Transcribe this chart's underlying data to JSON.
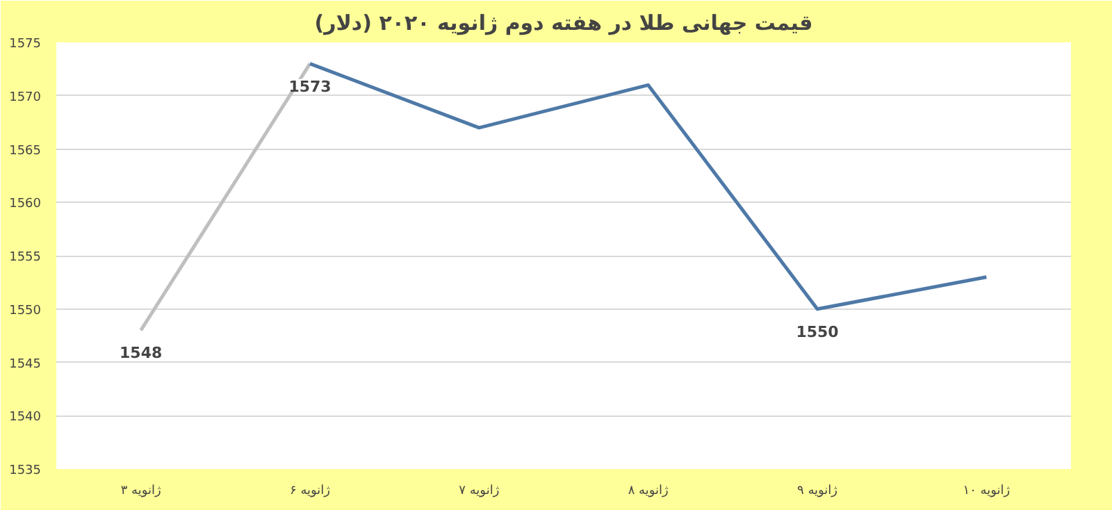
{
  "chart_data": {
    "type": "line",
    "title": "قیمت جهانی طلا در هفته دوم ژانویه ۲۰۲۰ (دلار)",
    "categories": [
      "۳ ژانویه",
      "۶ ژانویه",
      "۷ ژانویه",
      "۸ ژانویه",
      "۹ ژانویه",
      "۱۰ ژانویه"
    ],
    "series": [
      {
        "color": "#bfbfbf",
        "values": [
          1548,
          1573,
          null,
          null,
          null,
          null
        ],
        "value_labels": [
          "1548",
          null,
          null,
          null,
          null,
          null
        ]
      },
      {
        "color": "#4e79a7",
        "values": [
          null,
          1573,
          1567,
          1571,
          1550,
          1553
        ],
        "value_labels": [
          null,
          "1573",
          null,
          null,
          "1550",
          null
        ]
      }
    ],
    "ylim": [
      1535,
      1575
    ],
    "yticks": [
      1535,
      1540,
      1545,
      1550,
      1555,
      1560,
      1565,
      1570,
      1575
    ],
    "grid": "y",
    "marker": "none",
    "line_style": "solid"
  }
}
